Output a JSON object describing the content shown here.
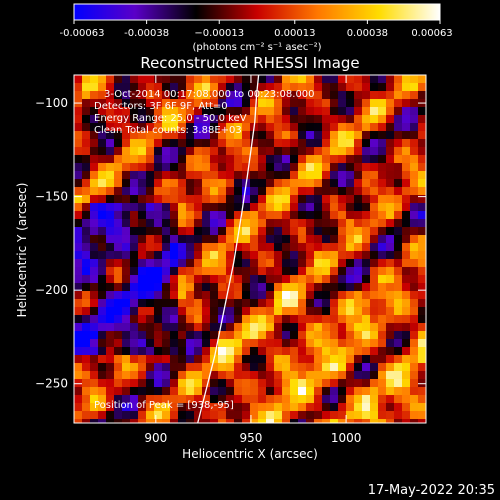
{
  "chart_data": {
    "type": "heatmap",
    "title": "Reconstructed RHESSI Image",
    "xlabel": "Heliocentric X (arcsec)",
    "ylabel": "Heliocentric Y (arcsec)",
    "xlim": [
      857,
      1042
    ],
    "ylim": [
      -271,
      -85
    ],
    "x_ticks": [
      900,
      950,
      1000
    ],
    "x_tick_labels": [
      "900",
      "950",
      "1000"
    ],
    "y_ticks": [
      -100,
      -150,
      -200,
      -250
    ],
    "y_tick_labels": [
      "−100",
      "−150",
      "−200",
      "−250"
    ],
    "colorbar": {
      "range": [
        -0.00063,
        0.00063
      ],
      "tick_values": [
        -0.00063,
        -0.00038,
        -0.00013,
        0.00013,
        0.00038,
        0.00063
      ],
      "tick_labels": [
        "-0.00063",
        "-0.00038",
        "−0.00013",
        "0.00013",
        "0.00038",
        "0.00063"
      ],
      "unit_label": "(photons cm⁻² s⁻¹ asec⁻²)",
      "colormap": [
        "#0000ff",
        "#5a00c8",
        "#000000",
        "#c80000",
        "#ff7800",
        "#ffdc00",
        "#ffffff"
      ]
    },
    "info_lines": [
      "3-Oct-2014 00:17:08.000 to 00:23:08.000",
      "Detectors: 3F 6F 9F, Att=0",
      "Energy Range: 25.0 - 50.0 keV",
      "Clean      Total counts: 3.88E+03"
    ],
    "peak_label": "Position of Peak = [938,-95]",
    "limb": {
      "x": [
        922,
        926,
        931,
        936,
        941,
        945,
        948,
        950,
        952,
        953,
        954
      ],
      "y": [
        -271,
        -255,
        -235,
        -210,
        -185,
        -160,
        -140,
        -125,
        -110,
        -95,
        -85
      ]
    }
  },
  "footer": {
    "timestamp": "17-May-2022 20:35"
  }
}
